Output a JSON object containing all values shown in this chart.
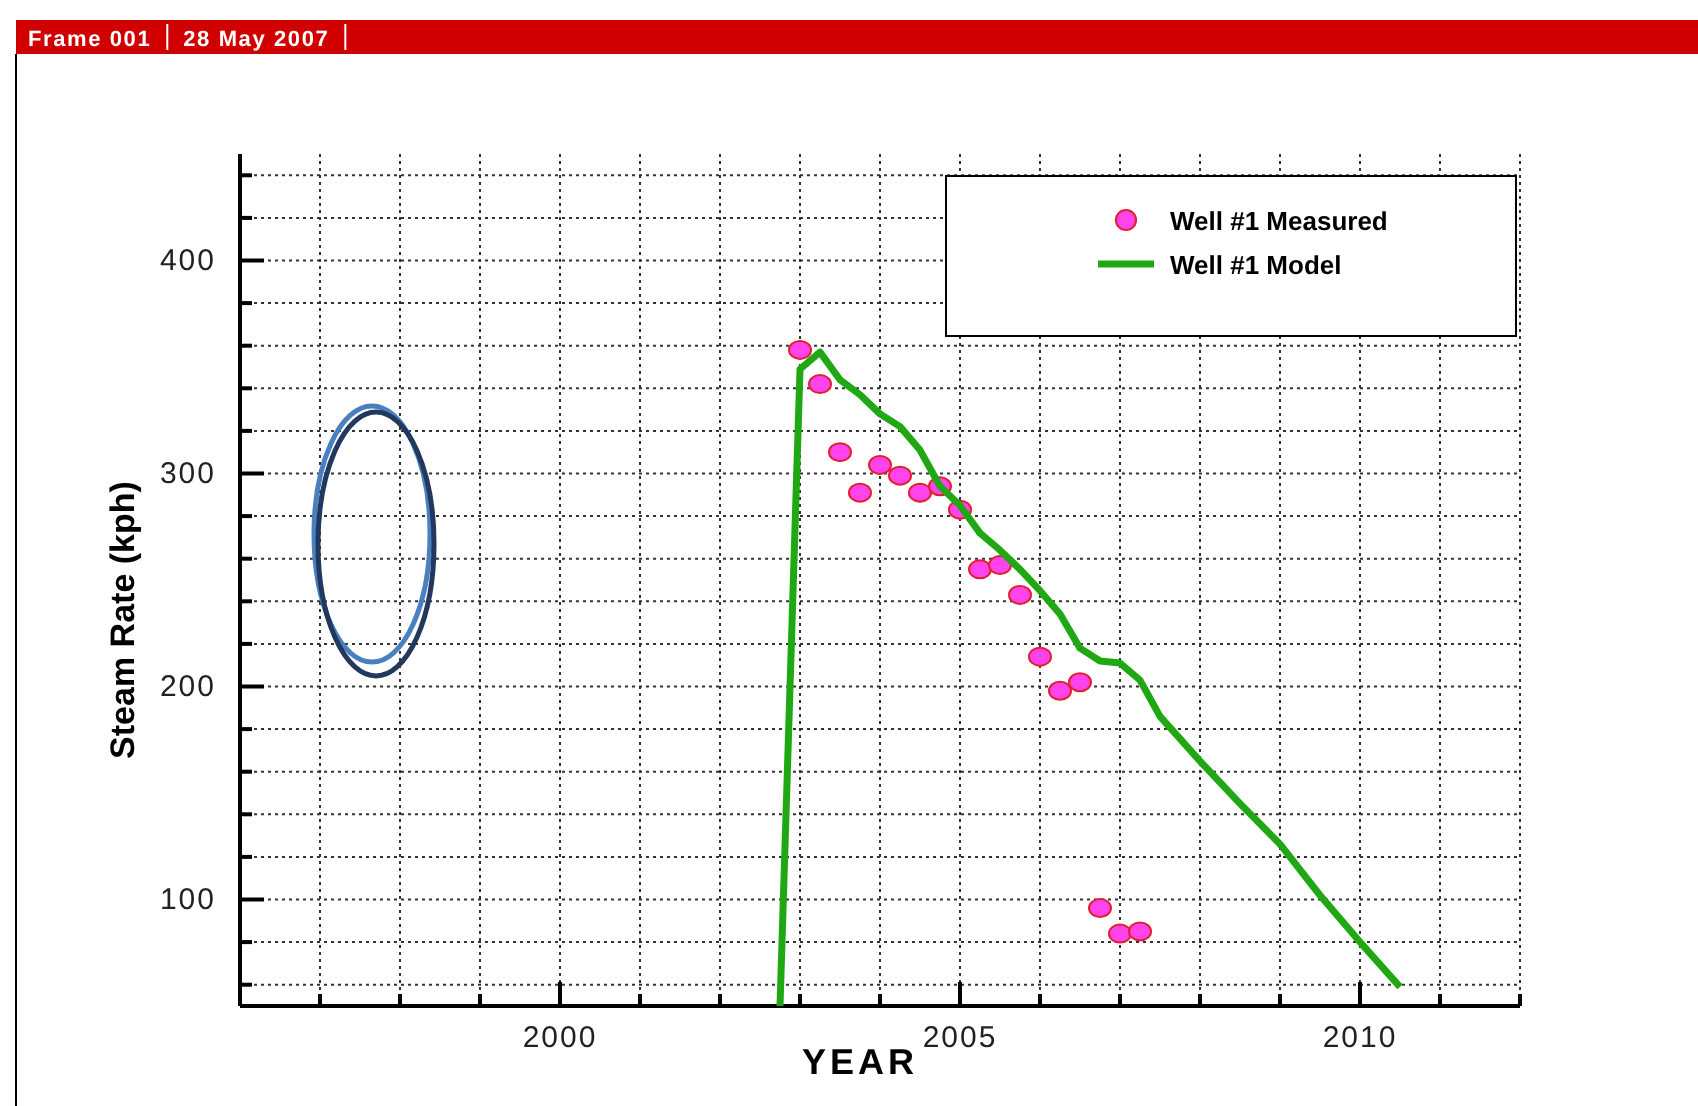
{
  "chart_data": {
    "type": "scatter",
    "xlabel": "YEAR",
    "ylabel": "Steam Rate (kph)",
    "annotations": [
      "Frame 001",
      "28 May 2007"
    ],
    "xlim": [
      1996,
      2012
    ],
    "ylim": [
      50,
      450
    ],
    "xticks": [
      {
        "value": 1997,
        "label": null
      },
      {
        "value": 1998,
        "label": null
      },
      {
        "value": 1999,
        "label": null
      },
      2000,
      {
        "value": 2001,
        "label": null
      },
      {
        "value": 2002,
        "label": null
      },
      {
        "value": 2003,
        "label": null
      },
      {
        "value": 2004,
        "label": null
      },
      2005,
      {
        "value": 2006,
        "label": null
      },
      {
        "value": 2007,
        "label": null
      },
      {
        "value": 2008,
        "label": null
      },
      {
        "value": 2009,
        "label": null
      },
      2010,
      {
        "value": 2011,
        "label": null
      },
      {
        "value": 2012,
        "label": null
      }
    ],
    "yticks": [
      {
        "value": 60,
        "label": null
      },
      {
        "value": 80,
        "label": null
      },
      100,
      {
        "value": 120,
        "label": null
      },
      {
        "value": 140,
        "label": null
      },
      {
        "value": 160,
        "label": null
      },
      {
        "value": 180,
        "label": null
      },
      200,
      {
        "value": 220,
        "label": null
      },
      {
        "value": 240,
        "label": null
      },
      {
        "value": 260,
        "label": null
      },
      {
        "value": 280,
        "label": null
      },
      300,
      {
        "value": 320,
        "label": null
      },
      {
        "value": 340,
        "label": null
      },
      {
        "value": 360,
        "label": null
      },
      {
        "value": 380,
        "label": null
      },
      400,
      {
        "value": 420,
        "label": null
      },
      {
        "value": 440,
        "label": null
      }
    ],
    "grid": true,
    "legend": "top right",
    "marker": "circle",
    "series": [
      {
        "name": "Well #1 Measured",
        "color": "#ff44ee",
        "x": [
          2003.0,
          2003.25,
          2003.5,
          2003.75,
          2004.0,
          2004.25,
          2004.5,
          2004.75,
          2005.0,
          2005.25,
          2005.5,
          2005.75,
          2006.0,
          2006.25,
          2006.5,
          2006.75,
          2007.0,
          2007.25
        ],
        "values": [
          358,
          342,
          310,
          291,
          304,
          299,
          291,
          294,
          283,
          255,
          257,
          243,
          214,
          198,
          202,
          96,
          84,
          85
        ]
      },
      {
        "name": "Well #1 Model",
        "type": "line",
        "color": "#1fa814",
        "line_style": "solid",
        "marker": "none",
        "x": [
          2002.75,
          2003.0,
          2003.25,
          2003.5,
          2003.75,
          2004.0,
          2004.25,
          2004.5,
          2004.75,
          2005.0,
          2005.25,
          2005.5,
          2005.75,
          2006.0,
          2006.25,
          2006.5,
          2006.75,
          2007.0,
          2007.25,
          2007.5,
          2008.0,
          2008.5,
          2009.0,
          2009.5,
          2010.0,
          2010.5
        ],
        "values": [
          50,
          349,
          357,
          344,
          337,
          328,
          322,
          311,
          294,
          285,
          272,
          264,
          255,
          245,
          234,
          218,
          212,
          211,
          203,
          186,
          165,
          145,
          126,
          102,
          80,
          59
        ]
      }
    ]
  }
}
